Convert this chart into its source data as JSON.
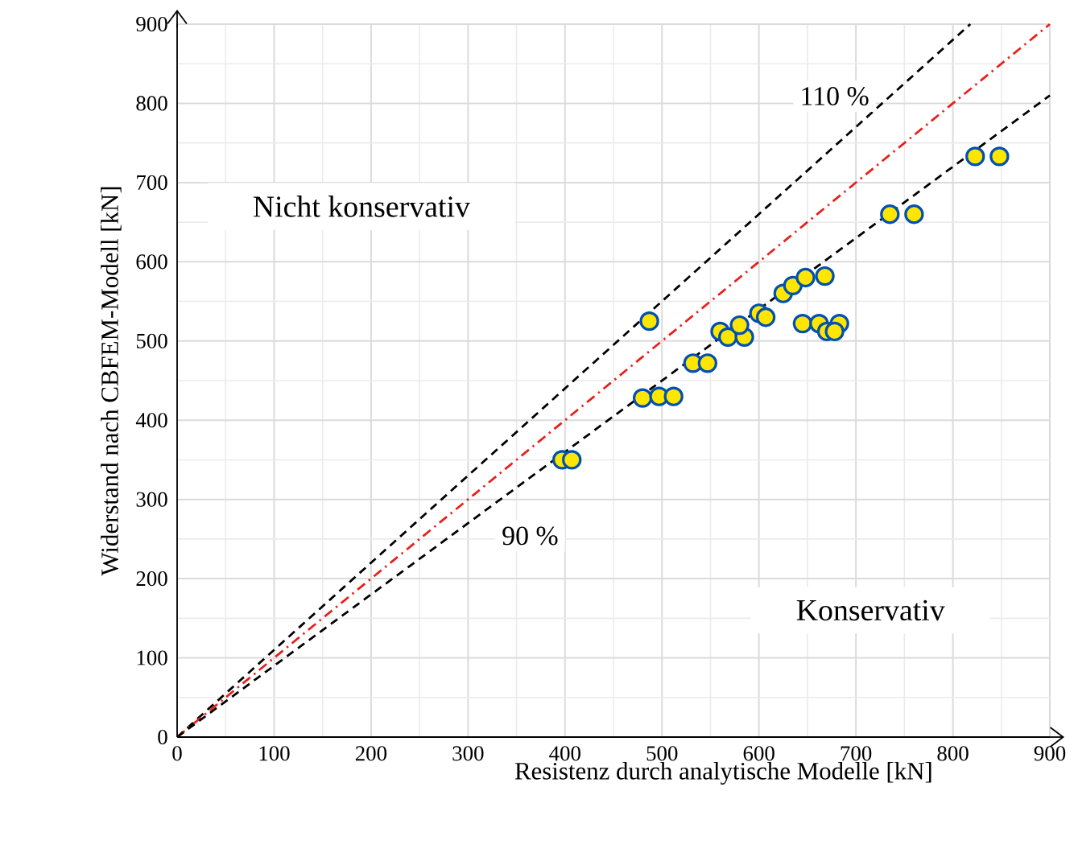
{
  "chart_data": {
    "type": "scatter",
    "xlabel": "Resistenz durch analytische Modelle [kN]",
    "ylabel": "Widerstand nach CBFEM-Modell [kN]",
    "xlim": [
      0,
      900
    ],
    "ylim": [
      0,
      900
    ],
    "xticks": [
      0,
      100,
      200,
      300,
      400,
      500,
      600,
      700,
      800,
      900
    ],
    "yticks": [
      0,
      100,
      200,
      300,
      400,
      500,
      600,
      700,
      800,
      900
    ],
    "grid": true,
    "series": [
      {
        "type": "line",
        "color": "#000000",
        "line_style": "dashed",
        "x": [
          0,
          818
        ],
        "values": [
          0,
          900
        ]
      },
      {
        "type": "line",
        "color": "#e8201c",
        "line_style": "dashdot",
        "x": [
          0,
          900
        ],
        "values": [
          0,
          900
        ]
      },
      {
        "type": "line",
        "color": "#000000",
        "line_style": "dashed",
        "x": [
          0,
          900
        ],
        "values": [
          0,
          810
        ]
      },
      {
        "color": "#ffe600",
        "marker": "circle",
        "x": [
          397,
          407,
          480,
          497,
          512,
          487,
          532,
          547,
          560,
          568,
          585,
          580,
          600,
          607,
          625,
          635,
          648,
          668,
          645,
          662,
          670,
          683,
          678,
          735,
          760,
          823,
          848
        ],
        "values": [
          350,
          350,
          428,
          430,
          430,
          525,
          472,
          472,
          512,
          505,
          505,
          520,
          535,
          530,
          560,
          570,
          580,
          582,
          522,
          522,
          512,
          522,
          512,
          660,
          660,
          733,
          733
        ]
      }
    ],
    "annotations": [
      "110 %",
      "90 %",
      "Nicht konservativ",
      "Konservativ"
    ]
  }
}
